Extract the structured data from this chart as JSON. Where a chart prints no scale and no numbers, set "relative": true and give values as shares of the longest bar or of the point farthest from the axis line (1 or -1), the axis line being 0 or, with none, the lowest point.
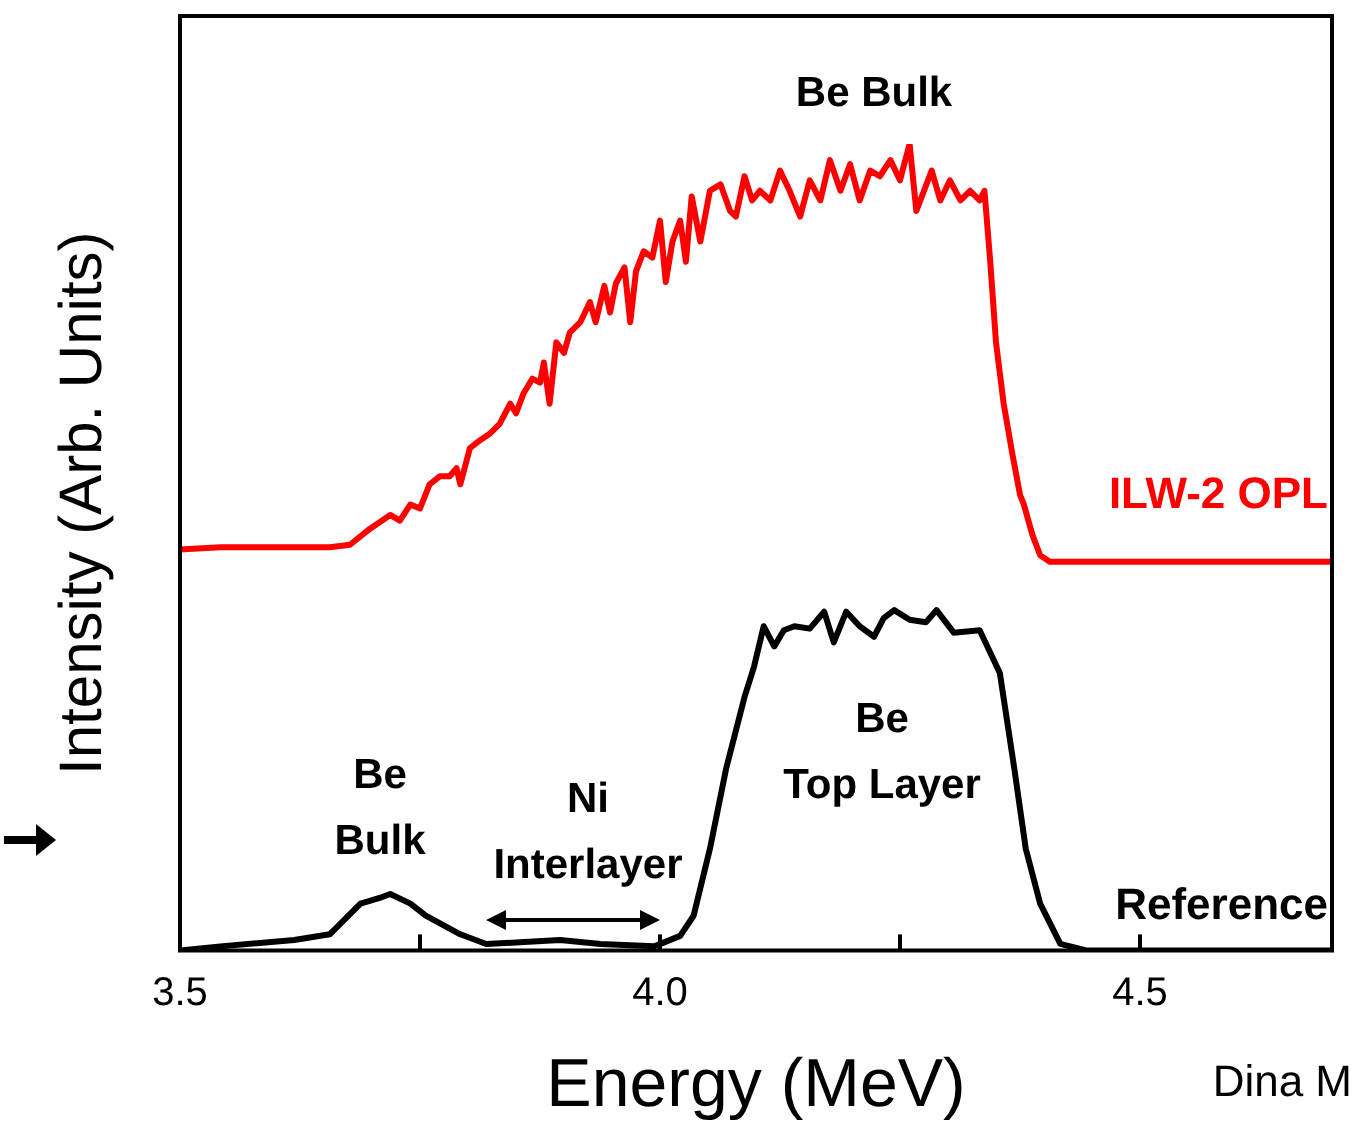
{
  "chart_data": {
    "type": "line",
    "xlabel": "Energy (MeV)",
    "ylabel": "Intensity (Arb. Units)",
    "relative": true,
    "xlim": [
      3.5,
      4.7
    ],
    "xticks": [
      3.5,
      {
        "value": 3.75,
        "label": null
      },
      {
        "value": 4,
        "label": "4.0"
      },
      {
        "value": 4.25,
        "label": null
      },
      4.5
    ],
    "grid": false,
    "legend": false,
    "marker": "none",
    "line_style": "solid",
    "annotations": [
      "Be Bulk",
      "Be\nBulk",
      "Ni\nInterlayer",
      "Be\nTop Layer",
      "Dina M"
    ],
    "series": [
      {
        "name": "ILW-2 OPL",
        "color": "#ff0000",
        "x": [
          3.5,
          3.542,
          3.583,
          3.625,
          3.656,
          3.677,
          3.698,
          3.719,
          3.729,
          3.74,
          3.75,
          3.76,
          3.771,
          3.781,
          3.788,
          3.792,
          3.802,
          3.813,
          3.823,
          3.833,
          3.844,
          3.85,
          3.858,
          3.867,
          3.875,
          3.879,
          3.885,
          3.892,
          3.9,
          3.906,
          3.917,
          3.927,
          3.933,
          3.942,
          3.948,
          3.954,
          3.963,
          3.969,
          3.975,
          3.983,
          3.992,
          4,
          4.006,
          4.013,
          4.021,
          4.027,
          4.033,
          4.042,
          4.052,
          4.063,
          4.073,
          4.079,
          4.088,
          4.096,
          4.104,
          4.115,
          4.125,
          4.135,
          4.146,
          4.156,
          4.167,
          4.177,
          4.188,
          4.198,
          4.208,
          4.219,
          4.229,
          4.24,
          4.25,
          4.26,
          4.267,
          4.275,
          4.283,
          4.292,
          4.302,
          4.313,
          4.323,
          4.333,
          4.338,
          4.344,
          4.35,
          4.358,
          4.367,
          4.375,
          4.379,
          4.388,
          4.396,
          4.406,
          4.479,
          4.563,
          4.7
        ],
        "values": [
          0.497,
          0.5,
          0.5,
          0.5,
          0.5,
          0.503,
          0.523,
          0.54,
          0.533,
          0.553,
          0.548,
          0.578,
          0.588,
          0.588,
          0.598,
          0.578,
          0.623,
          0.633,
          0.641,
          0.653,
          0.678,
          0.666,
          0.691,
          0.709,
          0.704,
          0.729,
          0.678,
          0.754,
          0.741,
          0.766,
          0.779,
          0.804,
          0.779,
          0.824,
          0.791,
          0.827,
          0.847,
          0.779,
          0.842,
          0.867,
          0.859,
          0.905,
          0.829,
          0.879,
          0.905,
          0.854,
          0.935,
          0.879,
          0.942,
          0.95,
          0.917,
          0.91,
          0.96,
          0.93,
          0.942,
          0.93,
          0.967,
          0.942,
          0.91,
          0.955,
          0.93,
          0.98,
          0.942,
          0.975,
          0.93,
          0.967,
          0.96,
          0.98,
          0.955,
          1,
          0.917,
          0.942,
          0.967,
          0.93,
          0.955,
          0.93,
          0.942,
          0.93,
          0.942,
          0.854,
          0.754,
          0.678,
          0.616,
          0.565,
          0.553,
          0.515,
          0.49,
          0.482,
          0.482,
          0.482,
          0.482
        ]
      },
      {
        "name": "Reference",
        "color": "#000000",
        "x": [
          3.5,
          3.542,
          3.619,
          3.656,
          3.688,
          3.708,
          3.719,
          3.74,
          3.756,
          3.792,
          3.819,
          3.854,
          3.896,
          3.938,
          3.994,
          4.021,
          4.035,
          4.052,
          4.069,
          4.088,
          4.098,
          4.108,
          4.119,
          4.129,
          4.14,
          4.156,
          4.171,
          4.181,
          4.194,
          4.208,
          4.223,
          4.233,
          4.244,
          4.26,
          4.277,
          4.288,
          4.306,
          4.333,
          4.354,
          4.369,
          4.381,
          4.396,
          4.417,
          4.444,
          4.563,
          4.7
        ],
        "values": [
          0,
          0.005,
          0.013,
          0.02,
          0.058,
          0.065,
          0.07,
          0.058,
          0.043,
          0.02,
          0.008,
          0.01,
          0.013,
          0.008,
          0.005,
          0.018,
          0.043,
          0.126,
          0.226,
          0.314,
          0.352,
          0.402,
          0.377,
          0.397,
          0.402,
          0.399,
          0.42,
          0.382,
          0.42,
          0.402,
          0.389,
          0.412,
          0.422,
          0.41,
          0.407,
          0.422,
          0.394,
          0.397,
          0.344,
          0.226,
          0.126,
          0.058,
          0.008,
          0,
          0,
          0
        ]
      }
    ]
  }
}
